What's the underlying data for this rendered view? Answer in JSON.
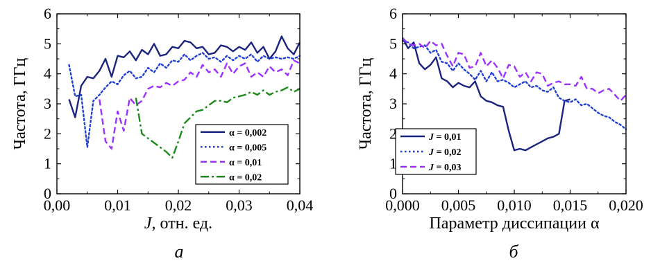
{
  "figure": {
    "panel_labels": [
      "а",
      "б"
    ]
  },
  "chart_data": [
    {
      "type": "line",
      "panel": "а",
      "xlabel": "J, отн. ед.",
      "xlabel_italic": "J",
      "xlabel_rest": ", отн. ед.",
      "ylabel": "Частота, ГГц",
      "xlim": [
        0.0,
        0.04
      ],
      "ylim": [
        0,
        6
      ],
      "xticks": [
        "0,00",
        "0,01",
        "0,02",
        "0,03",
        "0,04"
      ],
      "xtick_values": [
        0.0,
        0.01,
        0.02,
        0.03,
        0.04
      ],
      "yticks": [
        "0",
        "1",
        "2",
        "3",
        "4",
        "5",
        "6"
      ],
      "ytick_values": [
        0,
        1,
        2,
        3,
        4,
        5,
        6
      ],
      "grid": false,
      "legend": "bottom-right",
      "series": [
        {
          "name": "α = 0,002",
          "color": "#1a237e",
          "dash": "solid",
          "x": [
            0.002,
            0.003,
            0.004,
            0.005,
            0.006,
            0.007,
            0.008,
            0.009,
            0.01,
            0.011,
            0.012,
            0.013,
            0.014,
            0.015,
            0.016,
            0.017,
            0.018,
            0.019,
            0.02,
            0.021,
            0.022,
            0.023,
            0.024,
            0.025,
            0.026,
            0.027,
            0.028,
            0.029,
            0.03,
            0.031,
            0.032,
            0.033,
            0.034,
            0.035,
            0.036,
            0.037,
            0.038,
            0.039,
            0.04
          ],
          "y": [
            3.15,
            2.55,
            3.6,
            3.9,
            3.85,
            4.1,
            4.5,
            3.9,
            4.6,
            4.55,
            4.75,
            4.45,
            4.8,
            4.65,
            5.0,
            4.6,
            4.65,
            4.9,
            4.85,
            5.1,
            5.05,
            4.85,
            4.9,
            4.65,
            4.7,
            4.95,
            4.9,
            4.75,
            4.9,
            4.8,
            5.05,
            4.7,
            4.9,
            4.5,
            4.75,
            5.25,
            4.85,
            4.65,
            5.05
          ]
        },
        {
          "name": "α = 0,005",
          "color": "#1f3fd6",
          "dash": "dot",
          "x": [
            0.002,
            0.003,
            0.004,
            0.005,
            0.006,
            0.007,
            0.008,
            0.009,
            0.01,
            0.011,
            0.012,
            0.013,
            0.014,
            0.015,
            0.016,
            0.017,
            0.018,
            0.019,
            0.02,
            0.021,
            0.022,
            0.023,
            0.024,
            0.025,
            0.026,
            0.027,
            0.028,
            0.029,
            0.03,
            0.031,
            0.032,
            0.033,
            0.034,
            0.035,
            0.036,
            0.037,
            0.038,
            0.039,
            0.04
          ],
          "y": [
            4.3,
            3.25,
            3.3,
            1.55,
            3.1,
            3.3,
            3.55,
            3.75,
            3.65,
            3.95,
            4.1,
            3.85,
            3.9,
            4.2,
            4.05,
            4.35,
            4.2,
            4.45,
            4.4,
            4.65,
            4.45,
            4.6,
            4.7,
            4.5,
            4.55,
            4.4,
            4.6,
            4.45,
            4.6,
            4.5,
            4.65,
            4.4,
            4.6,
            4.5,
            4.55,
            4.5,
            4.55,
            4.5,
            4.6
          ]
        },
        {
          "name": "α = 0,01",
          "color": "#9b30ff",
          "dash": "dash",
          "x": [
            0.007,
            0.008,
            0.009,
            0.01,
            0.011,
            0.012,
            0.013,
            0.014,
            0.015,
            0.016,
            0.017,
            0.018,
            0.019,
            0.02,
            0.021,
            0.022,
            0.023,
            0.024,
            0.025,
            0.026,
            0.027,
            0.028,
            0.029,
            0.03,
            0.031,
            0.032,
            0.033,
            0.034,
            0.035,
            0.036,
            0.037,
            0.038,
            0.039,
            0.04
          ],
          "y": [
            3.15,
            1.75,
            1.5,
            2.75,
            2.1,
            3.2,
            2.95,
            3.1,
            3.5,
            3.6,
            3.55,
            3.7,
            3.6,
            3.75,
            3.8,
            4.05,
            3.9,
            4.3,
            4.05,
            4.15,
            3.9,
            4.35,
            4.0,
            4.25,
            4.35,
            3.9,
            4.05,
            3.9,
            4.25,
            4.05,
            4.15,
            3.95,
            4.45,
            4.35
          ]
        },
        {
          "name": "α = 0,02",
          "color": "#1b8a1b",
          "dash": "dashdot",
          "x": [
            0.013,
            0.014,
            0.015,
            0.016,
            0.017,
            0.018,
            0.019,
            0.02,
            0.021,
            0.022,
            0.023,
            0.024,
            0.025,
            0.026,
            0.027,
            0.028,
            0.029,
            0.03,
            0.031,
            0.032,
            0.033,
            0.034,
            0.035,
            0.036,
            0.037,
            0.038,
            0.039,
            0.04
          ],
          "y": [
            3.2,
            2.0,
            1.85,
            1.7,
            1.55,
            1.4,
            1.2,
            1.75,
            2.35,
            2.55,
            2.75,
            2.8,
            2.95,
            3.1,
            3.1,
            3.05,
            3.2,
            3.25,
            3.3,
            3.4,
            3.3,
            3.45,
            3.3,
            3.4,
            3.45,
            3.55,
            3.4,
            3.5
          ]
        }
      ]
    },
    {
      "type": "line",
      "panel": "б",
      "xlabel": "Параметр диссипации α",
      "ylabel": "Частота, ГГц",
      "xlim": [
        0.0,
        0.02
      ],
      "ylim": [
        0,
        6
      ],
      "xticks": [
        "0,000",
        "0,005",
        "0,010",
        "0,015",
        "0,020"
      ],
      "xtick_values": [
        0.0,
        0.005,
        0.01,
        0.015,
        0.02
      ],
      "yticks": [
        "0",
        "1",
        "2",
        "3",
        "4",
        "5",
        "6"
      ],
      "ytick_values": [
        0,
        1,
        2,
        3,
        4,
        5,
        6
      ],
      "grid": false,
      "legend": "bottom-left",
      "series": [
        {
          "name": "J = 0,01",
          "name_italic": "J",
          "name_rest": " = 0,01",
          "color": "#1a237e",
          "dash": "solid",
          "x": [
            0.0,
            0.0005,
            0.001,
            0.0015,
            0.002,
            0.0025,
            0.003,
            0.0035,
            0.004,
            0.0045,
            0.005,
            0.0055,
            0.006,
            0.0065,
            0.007,
            0.0075,
            0.008,
            0.0085,
            0.009,
            0.0095,
            0.01,
            0.0105,
            0.011,
            0.0115,
            0.012,
            0.0125,
            0.013,
            0.0135,
            0.014,
            0.0145,
            0.015
          ],
          "y": [
            5.2,
            4.85,
            5.05,
            4.35,
            4.15,
            4.3,
            4.55,
            3.85,
            3.75,
            3.55,
            3.7,
            3.6,
            3.55,
            3.75,
            3.25,
            3.1,
            3.05,
            2.95,
            2.9,
            2.1,
            1.45,
            1.5,
            1.45,
            1.55,
            1.65,
            1.75,
            1.85,
            1.9,
            2.0,
            3.1,
            3.15
          ]
        },
        {
          "name": "J = 0,02",
          "name_italic": "J",
          "name_rest": " = 0,02",
          "color": "#1f3fd6",
          "dash": "dot",
          "x": [
            0.0,
            0.0005,
            0.001,
            0.0015,
            0.002,
            0.0025,
            0.003,
            0.0035,
            0.004,
            0.0045,
            0.005,
            0.0055,
            0.006,
            0.0065,
            0.007,
            0.0075,
            0.008,
            0.0085,
            0.009,
            0.0095,
            0.01,
            0.0105,
            0.011,
            0.0115,
            0.012,
            0.0125,
            0.013,
            0.0135,
            0.014,
            0.0145,
            0.015,
            0.0155,
            0.016,
            0.0165,
            0.017,
            0.0175,
            0.018,
            0.0185,
            0.019,
            0.0195,
            0.02
          ],
          "y": [
            5.1,
            5.05,
            4.85,
            4.9,
            4.95,
            4.7,
            4.8,
            4.4,
            4.35,
            4.1,
            4.35,
            4.15,
            4.0,
            3.8,
            4.1,
            3.75,
            4.05,
            3.75,
            3.8,
            3.7,
            3.55,
            3.65,
            3.75,
            3.55,
            3.6,
            3.45,
            3.4,
            3.55,
            3.2,
            3.1,
            3.05,
            3.15,
            2.95,
            3.0,
            2.85,
            2.7,
            2.6,
            2.55,
            2.4,
            2.3,
            2.15
          ]
        },
        {
          "name": "J = 0,03",
          "name_italic": "J",
          "name_rest": " = 0,03",
          "color": "#9b30ff",
          "dash": "dash",
          "x": [
            0.0,
            0.0005,
            0.001,
            0.0015,
            0.002,
            0.0025,
            0.003,
            0.0035,
            0.004,
            0.0045,
            0.005,
            0.0055,
            0.006,
            0.0065,
            0.007,
            0.0075,
            0.008,
            0.0085,
            0.009,
            0.0095,
            0.01,
            0.0105,
            0.011,
            0.0115,
            0.012,
            0.0125,
            0.013,
            0.0135,
            0.014,
            0.0145,
            0.015,
            0.0155,
            0.016,
            0.0165,
            0.017,
            0.0175,
            0.018,
            0.0185,
            0.019,
            0.0195,
            0.02
          ],
          "y": [
            5.2,
            5.0,
            4.95,
            5.0,
            4.85,
            5.1,
            4.95,
            5.0,
            4.6,
            4.25,
            4.7,
            4.65,
            4.2,
            4.25,
            4.7,
            4.25,
            4.45,
            4.2,
            3.85,
            4.3,
            4.25,
            3.9,
            4.05,
            3.75,
            4.05,
            4.0,
            3.6,
            3.7,
            3.75,
            3.65,
            3.65,
            3.6,
            3.9,
            3.5,
            3.5,
            3.35,
            3.45,
            3.5,
            3.3,
            3.1,
            3.3
          ]
        }
      ]
    }
  ]
}
